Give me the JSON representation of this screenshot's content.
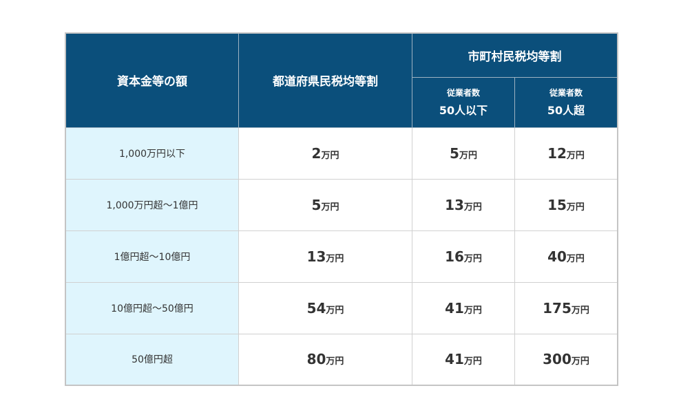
{
  "header": {
    "capital": "資本金等の額",
    "prefectural": "都道府県民税均等割",
    "municipal": "市町村民税均等割",
    "sub_cols": [
      {
        "top": "従業者数",
        "bottom": "50人以下"
      },
      {
        "top": "従業者数",
        "bottom": "50人超"
      }
    ]
  },
  "unit": "万円",
  "colors": {
    "header_bg": "#0b4f7b",
    "label_bg": "#dff5fd"
  },
  "rows": [
    {
      "label": "1,000万円以下",
      "prefectural": "2",
      "muni_small": "5",
      "muni_large": "12"
    },
    {
      "label": "1,000万円超～1億円",
      "prefectural": "5",
      "muni_small": "13",
      "muni_large": "15"
    },
    {
      "label": "1億円超～10億円",
      "prefectural": "13",
      "muni_small": "16",
      "muni_large": "40"
    },
    {
      "label": "10億円超～50億円",
      "prefectural": "54",
      "muni_small": "41",
      "muni_large": "175"
    },
    {
      "label": "50億円超",
      "prefectural": "80",
      "muni_small": "41",
      "muni_large": "300"
    }
  ]
}
